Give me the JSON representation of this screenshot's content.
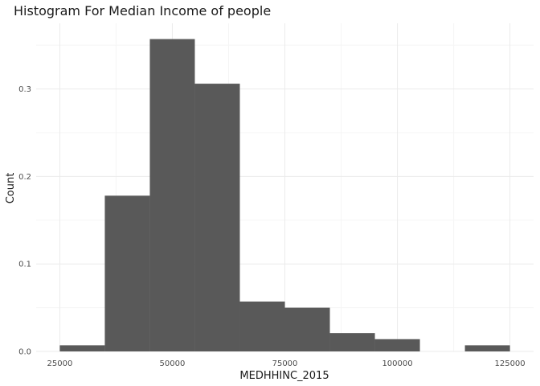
{
  "chart_data": {
    "type": "bar",
    "title": "Histogram For Median Income of people",
    "xlabel": "MEDHHINC_2015",
    "ylabel": "Count",
    "bin_width": 10000,
    "bins": [
      {
        "center": 30000,
        "value": 0.007
      },
      {
        "center": 40000,
        "value": 0.178
      },
      {
        "center": 50000,
        "value": 0.357
      },
      {
        "center": 60000,
        "value": 0.306
      },
      {
        "center": 70000,
        "value": 0.057
      },
      {
        "center": 80000,
        "value": 0.05
      },
      {
        "center": 90000,
        "value": 0.021
      },
      {
        "center": 100000,
        "value": 0.014
      },
      {
        "center": 110000,
        "value": 0
      },
      {
        "center": 120000,
        "value": 0.007
      }
    ],
    "x_ticks": [
      25000,
      50000,
      75000,
      100000,
      125000
    ],
    "x_tick_labels": [
      "25000",
      "50000",
      "75000",
      "100000",
      "125000"
    ],
    "y_ticks": [
      0,
      0.1,
      0.2,
      0.3
    ],
    "y_tick_labels": [
      "0.0",
      "0.1",
      "0.2",
      "0.3"
    ],
    "xlim": [
      19750,
      130250
    ],
    "ylim": [
      0,
      0.375
    ],
    "grid": true,
    "colors": {
      "bar": "#595959",
      "grid_major": "#ebebeb",
      "grid_minor": "#f5f5f5"
    }
  }
}
